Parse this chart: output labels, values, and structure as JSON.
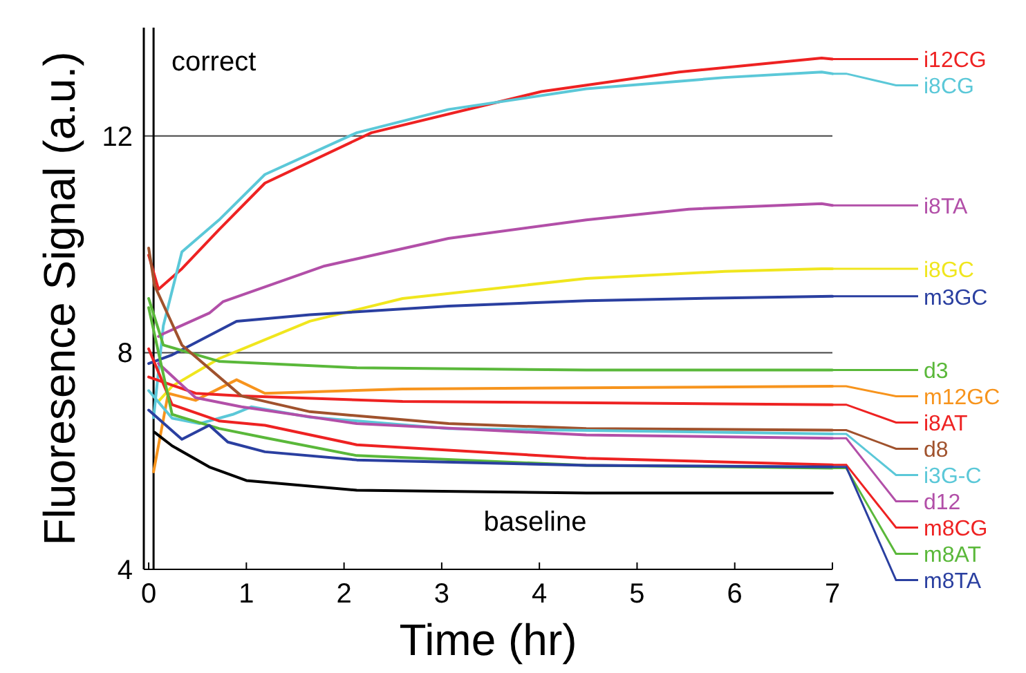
{
  "chart_data": {
    "type": "line",
    "xlabel": "Time (hr)",
    "ylabel": "Fluoresence Signal (a.u.)",
    "xlim": [
      -0.05,
      7
    ],
    "xticks": [
      0,
      1,
      2,
      3,
      4,
      5,
      6,
      7
    ],
    "ylim": [
      4,
      14
    ],
    "yticks": [
      4,
      8,
      12
    ],
    "grid": "y",
    "ref_lines": [
      {
        "axis": "x",
        "value": 0.05
      }
    ],
    "annotations": [
      "correct",
      "baseline"
    ],
    "legend": "right",
    "series": [
      {
        "name": "i12CG",
        "color": "#ee2222",
        "x": [
          0,
          0.1,
          0.34,
          0.72,
          1.19,
          2.28,
          4.02,
          5.43,
          6.89,
          7
        ],
        "values": [
          9.8,
          9.17,
          9.55,
          10.27,
          11.13,
          12.06,
          12.82,
          13.18,
          13.44,
          13.42
        ]
      },
      {
        "name": "i8CG",
        "color": "#5bc8d8",
        "x": [
          0.05,
          0.15,
          0.34,
          0.72,
          1.19,
          2.13,
          3.07,
          4.48,
          5.9,
          6.89,
          7
        ],
        "values": [
          6.8,
          8.5,
          9.86,
          10.45,
          11.29,
          12.06,
          12.49,
          12.87,
          13.08,
          13.18,
          13.15
        ]
      },
      {
        "name": "i8TA",
        "color": "#b24fa8",
        "x": [
          0.1,
          0.15,
          0.62,
          0.76,
          1.8,
          3.07,
          4.48,
          5.53,
          6.89,
          7
        ],
        "values": [
          8.3,
          8.35,
          8.73,
          8.94,
          9.6,
          10.11,
          10.45,
          10.65,
          10.75,
          10.72
        ]
      },
      {
        "name": "i8GC",
        "color": "#f0e61e",
        "x": [
          0.1,
          0.24,
          0.72,
          1.65,
          2.6,
          4.48,
          5.9,
          6.89,
          7
        ],
        "values": [
          7.1,
          7.38,
          7.89,
          8.58,
          9.0,
          9.37,
          9.5,
          9.55,
          9.55
        ]
      },
      {
        "name": "m3GC",
        "color": "#2a3fa0",
        "x": [
          0,
          0.24,
          0.9,
          1.65,
          3.07,
          4.48,
          5.9,
          7
        ],
        "values": [
          7.8,
          7.96,
          8.58,
          8.7,
          8.86,
          8.96,
          9.01,
          9.04
        ]
      },
      {
        "name": "d3",
        "color": "#5ab83a",
        "x": [
          0,
          0.15,
          0.72,
          2.13,
          4.48,
          7
        ],
        "values": [
          9.0,
          8.14,
          7.84,
          7.72,
          7.68,
          7.68
        ]
      },
      {
        "name": "m12GC",
        "color": "#f7941d",
        "x": [
          0.05,
          0.2,
          0.48,
          0.9,
          1.19,
          2.6,
          7
        ],
        "values": [
          5.8,
          7.25,
          7.12,
          7.5,
          7.25,
          7.33,
          7.38
        ]
      },
      {
        "name": "i8AT",
        "color": "#ee2222",
        "x": [
          0,
          0.48,
          0.95,
          2.6,
          7
        ],
        "values": [
          7.55,
          7.25,
          7.2,
          7.1,
          7.04
        ]
      },
      {
        "name": "d8",
        "color": "#a0522d",
        "x": [
          0,
          0.06,
          0.34,
          0.95,
          1.65,
          3.07,
          4.48,
          7
        ],
        "values": [
          9.93,
          9.24,
          8.14,
          7.2,
          6.91,
          6.69,
          6.6,
          6.57
        ]
      },
      {
        "name": "i3G-C",
        "color": "#5bc8d8",
        "x": [
          0,
          0.24,
          0.52,
          0.86,
          1.05,
          1.65,
          3.07,
          7
        ],
        "values": [
          7.3,
          6.79,
          6.69,
          6.86,
          7.0,
          6.81,
          6.6,
          6.5
        ]
      },
      {
        "name": "d12",
        "color": "#b24fa8",
        "x": [
          0.1,
          0.48,
          0.95,
          2.13,
          4.48,
          7
        ],
        "values": [
          7.8,
          7.17,
          7.0,
          6.69,
          6.48,
          6.42
        ]
      },
      {
        "name": "m8CG",
        "color": "#ee2222",
        "x": [
          0,
          0.24,
          0.72,
          1.19,
          2.13,
          4.48,
          7
        ],
        "values": [
          8.07,
          7.04,
          6.74,
          6.66,
          6.3,
          6.05,
          5.93
        ]
      },
      {
        "name": "m8AT",
        "color": "#5ab83a",
        "x": [
          0,
          0.24,
          0.72,
          1.19,
          2.13,
          4.48,
          7
        ],
        "values": [
          8.83,
          6.86,
          6.6,
          6.43,
          6.1,
          5.92,
          5.87
        ]
      },
      {
        "name": "m8TA",
        "color": "#2a3fa0",
        "x": [
          0,
          0.34,
          0.62,
          0.81,
          1.19,
          2.13,
          4.48,
          7
        ],
        "values": [
          6.94,
          6.4,
          6.66,
          6.35,
          6.17,
          6.02,
          5.92,
          5.89
        ]
      },
      {
        "color": "#000000",
        "x": [
          0.06,
          0.24,
          0.62,
          1.0,
          2.13,
          4.48,
          7
        ],
        "values": [
          6.53,
          6.28,
          5.89,
          5.64,
          5.46,
          5.41,
          5.41
        ]
      }
    ]
  }
}
